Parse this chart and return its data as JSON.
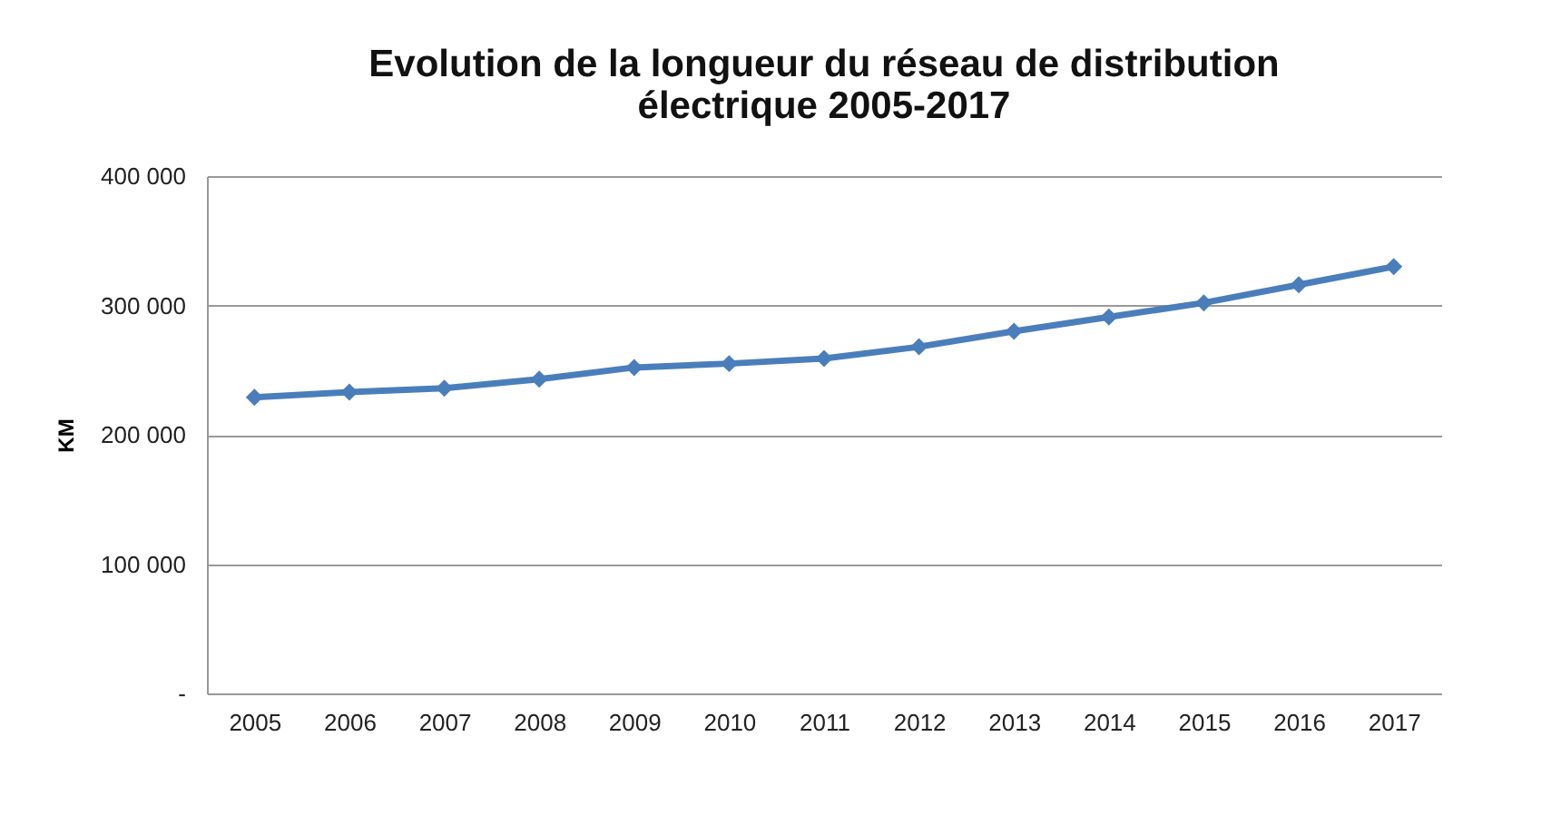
{
  "chart_data": {
    "type": "line",
    "title": [
      "Evolution de la longueur du réseau de distribution",
      "électrique 2005-2017"
    ],
    "ylabel": "KM",
    "categories": [
      "2005",
      "2006",
      "2007",
      "2008",
      "2009",
      "2010",
      "2011",
      "2012",
      "2013",
      "2014",
      "2015",
      "2016",
      "2017"
    ],
    "series": [
      {
        "color": "#4a7ebb",
        "values": [
          229000,
          233000,
          236000,
          243000,
          252000,
          255000,
          259000,
          268000,
          280000,
          291000,
          302000,
          316000,
          330000
        ]
      }
    ],
    "ylim": [
      0,
      400000
    ],
    "yticks": [
      {
        "value": 0,
        "label": "-"
      },
      {
        "value": 100000,
        "label": "100 000"
      },
      {
        "value": 200000,
        "label": "200 000"
      },
      {
        "value": 300000,
        "label": "300 000"
      },
      {
        "value": 400000,
        "label": "400 000"
      }
    ],
    "grid": "y",
    "legend": false,
    "marker": "diamond",
    "line_style": "solid"
  }
}
